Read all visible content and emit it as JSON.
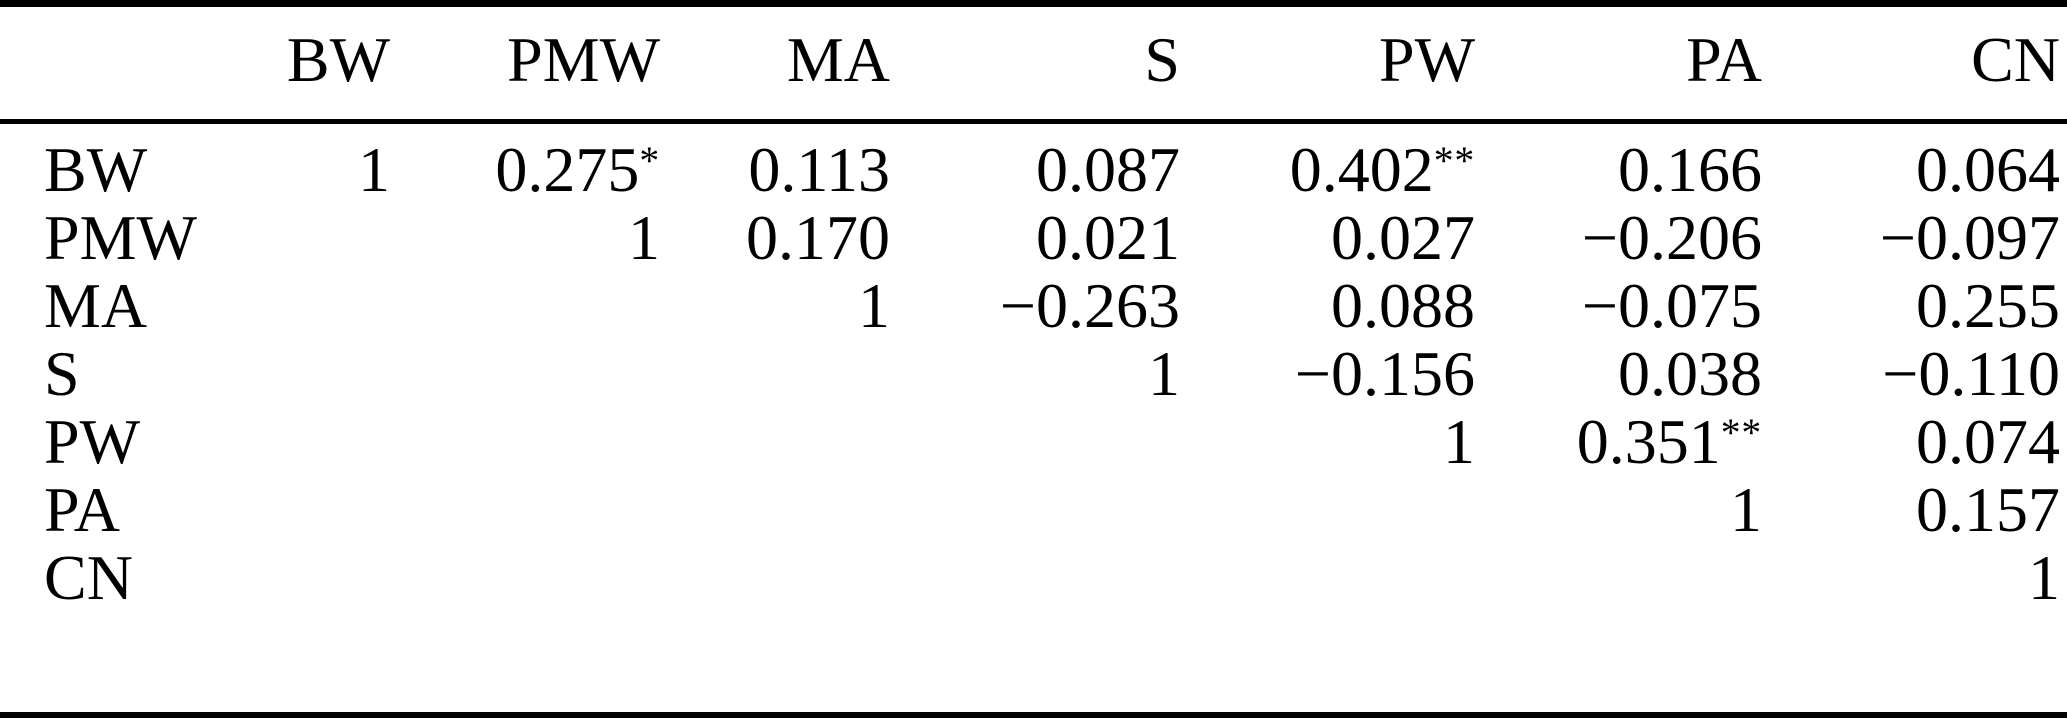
{
  "table": {
    "title": "correlation-matrix",
    "columns": [
      "",
      "BW",
      "PMW",
      "MA",
      "S",
      "PW",
      "PA",
      "CN"
    ],
    "rows": [
      {
        "label": "BW",
        "cells": [
          "1",
          "0.275*",
          "0.113",
          "0.087",
          "0.402**",
          "0.166",
          "0.064"
        ]
      },
      {
        "label": "PMW",
        "cells": [
          "",
          "1",
          "0.170",
          "0.021",
          "0.027",
          "−0.206",
          "−0.097"
        ]
      },
      {
        "label": "MA",
        "cells": [
          "",
          "",
          "1",
          "−0.263",
          "0.088",
          "−0.075",
          "0.255"
        ]
      },
      {
        "label": "S",
        "cells": [
          "",
          "",
          "",
          "1",
          "−0.156",
          "0.038",
          "−0.110"
        ]
      },
      {
        "label": "PW",
        "cells": [
          "",
          "",
          "",
          "",
          "1",
          "0.351**",
          "0.074"
        ]
      },
      {
        "label": "PA",
        "cells": [
          "",
          "",
          "",
          "",
          "",
          "1",
          "0.157"
        ]
      },
      {
        "label": "CN",
        "cells": [
          "",
          "",
          "",
          "",
          "",
          "",
          "1"
        ]
      }
    ]
  },
  "colors": {
    "text": "#000000",
    "background": "#ffffff",
    "rule": "#000000"
  }
}
